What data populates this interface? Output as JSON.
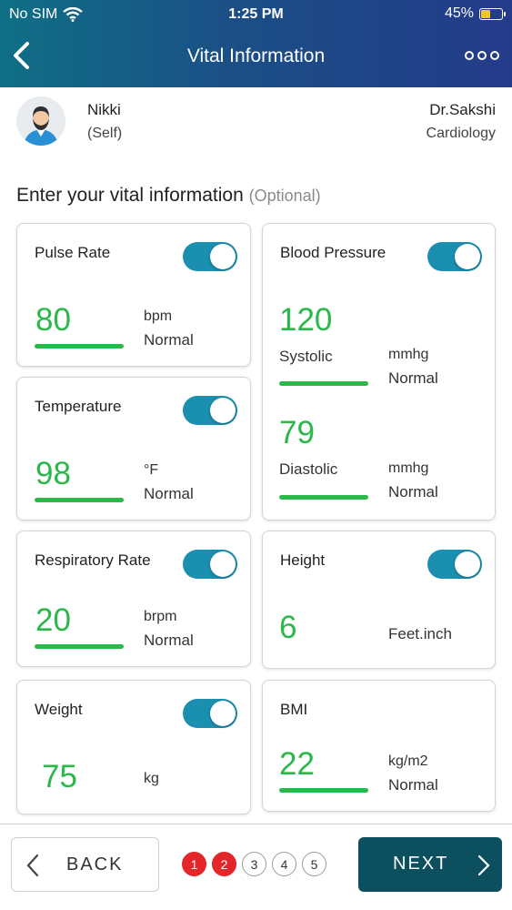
{
  "status_bar": {
    "carrier": "No SIM",
    "time": "1:25 PM",
    "battery": "45%"
  },
  "header": {
    "title": "Vital Information"
  },
  "patient": {
    "name": "Nikki",
    "relation": "(Self)"
  },
  "doctor": {
    "name": "Dr.Sakshi",
    "specialty": "Cardiology"
  },
  "section": {
    "title": "Enter your vital information",
    "optional": "(Optional)"
  },
  "vitals": {
    "pulse": {
      "label": "Pulse Rate",
      "value": "80",
      "unit": "bpm",
      "status": "Normal",
      "enabled": true
    },
    "temperature": {
      "label": "Temperature",
      "value": "98",
      "unit": "°F",
      "status": "Normal",
      "enabled": true
    },
    "respiratory": {
      "label": "Respiratory Rate",
      "value": "20",
      "unit": "brpm",
      "status": "Normal",
      "enabled": true
    },
    "weight": {
      "label": "Weight",
      "value": "75",
      "unit": "kg",
      "enabled": true
    },
    "blood_pressure": {
      "label": "Blood Pressure",
      "enabled": true,
      "systolic": {
        "value": "120",
        "label": "Systolic",
        "unit": "mmhg",
        "status": "Normal"
      },
      "diastolic": {
        "value": "79",
        "label": "Diastolic",
        "unit": "mmhg",
        "status": "Normal"
      }
    },
    "height": {
      "label": "Height",
      "value": "6",
      "unit": "Feet.inch",
      "enabled": true
    },
    "bmi": {
      "label": "BMI",
      "value": "22",
      "unit": "kg/m2",
      "status": "Normal"
    }
  },
  "footer": {
    "back_label": "BACK",
    "next_label": "NEXT",
    "steps": [
      "1",
      "2",
      "3",
      "4",
      "5"
    ],
    "completed_steps": 2
  },
  "colors": {
    "accent_green": "#2bb84a",
    "toggle_on": "#1a8fb0",
    "step_done": "#e3262a",
    "next_button": "#0c4f5f"
  }
}
